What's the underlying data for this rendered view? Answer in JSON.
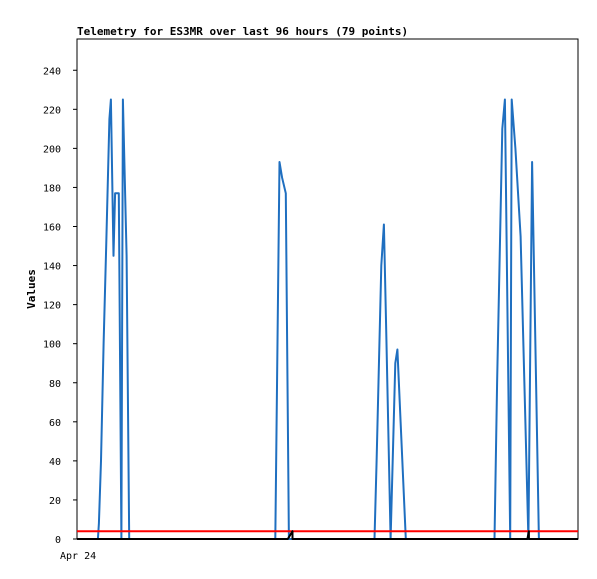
{
  "chart_data": {
    "type": "line",
    "title": "Telemetry for ES3MR over last 96 hours (79 points)",
    "xlabel": "",
    "ylabel": "Values",
    "x_tick_labels": [
      "Apr 24"
    ],
    "ylim": [
      0,
      256
    ],
    "xlim": [
      0,
      96
    ],
    "y_ticks": [
      0,
      20,
      40,
      60,
      80,
      100,
      120,
      140,
      160,
      180,
      200,
      220,
      240
    ],
    "grid": false,
    "legend": "none",
    "series": [
      {
        "color": "#1f6fc0",
        "points": [
          [
            0,
            0
          ],
          [
            4,
            0
          ],
          [
            4.2,
            8
          ],
          [
            4.6,
            40
          ],
          [
            5.1,
            100
          ],
          [
            5.6,
            150
          ],
          [
            6.2,
            215
          ],
          [
            6.5,
            225
          ],
          [
            7.0,
            145
          ],
          [
            7.3,
            177
          ],
          [
            8.0,
            177
          ],
          [
            8.5,
            0
          ],
          [
            8.8,
            225
          ],
          [
            9.5,
            145
          ],
          [
            10.0,
            0
          ],
          [
            38.0,
            0
          ],
          [
            38.8,
            193
          ],
          [
            39.3,
            185
          ],
          [
            40.0,
            177
          ],
          [
            40.6,
            0
          ],
          [
            57.0,
            0
          ],
          [
            57.4,
            40
          ],
          [
            58.3,
            140
          ],
          [
            58.8,
            161
          ],
          [
            59.3,
            100
          ],
          [
            60.1,
            0
          ],
          [
            61.0,
            90
          ],
          [
            61.4,
            97
          ],
          [
            62.0,
            60
          ],
          [
            63.0,
            0
          ],
          [
            80.0,
            0
          ],
          [
            80.5,
            80
          ],
          [
            81.5,
            210
          ],
          [
            82.0,
            225
          ],
          [
            83.0,
            0
          ],
          [
            83.3,
            225
          ],
          [
            84.0,
            200
          ],
          [
            85.0,
            155
          ],
          [
            86.5,
            0
          ],
          [
            87.2,
            193
          ],
          [
            88.5,
            0
          ]
        ]
      },
      {
        "color": "#ff0000",
        "points": [
          [
            0,
            4
          ],
          [
            96,
            4
          ]
        ]
      },
      {
        "color": "#000000",
        "points": [
          [
            0,
            0
          ],
          [
            40.4,
            0
          ],
          [
            41.3,
            4
          ],
          [
            41.3,
            0
          ],
          [
            86.3,
            0
          ],
          [
            86.6,
            4
          ],
          [
            86.6,
            0
          ],
          [
            96,
            0
          ]
        ]
      }
    ]
  }
}
